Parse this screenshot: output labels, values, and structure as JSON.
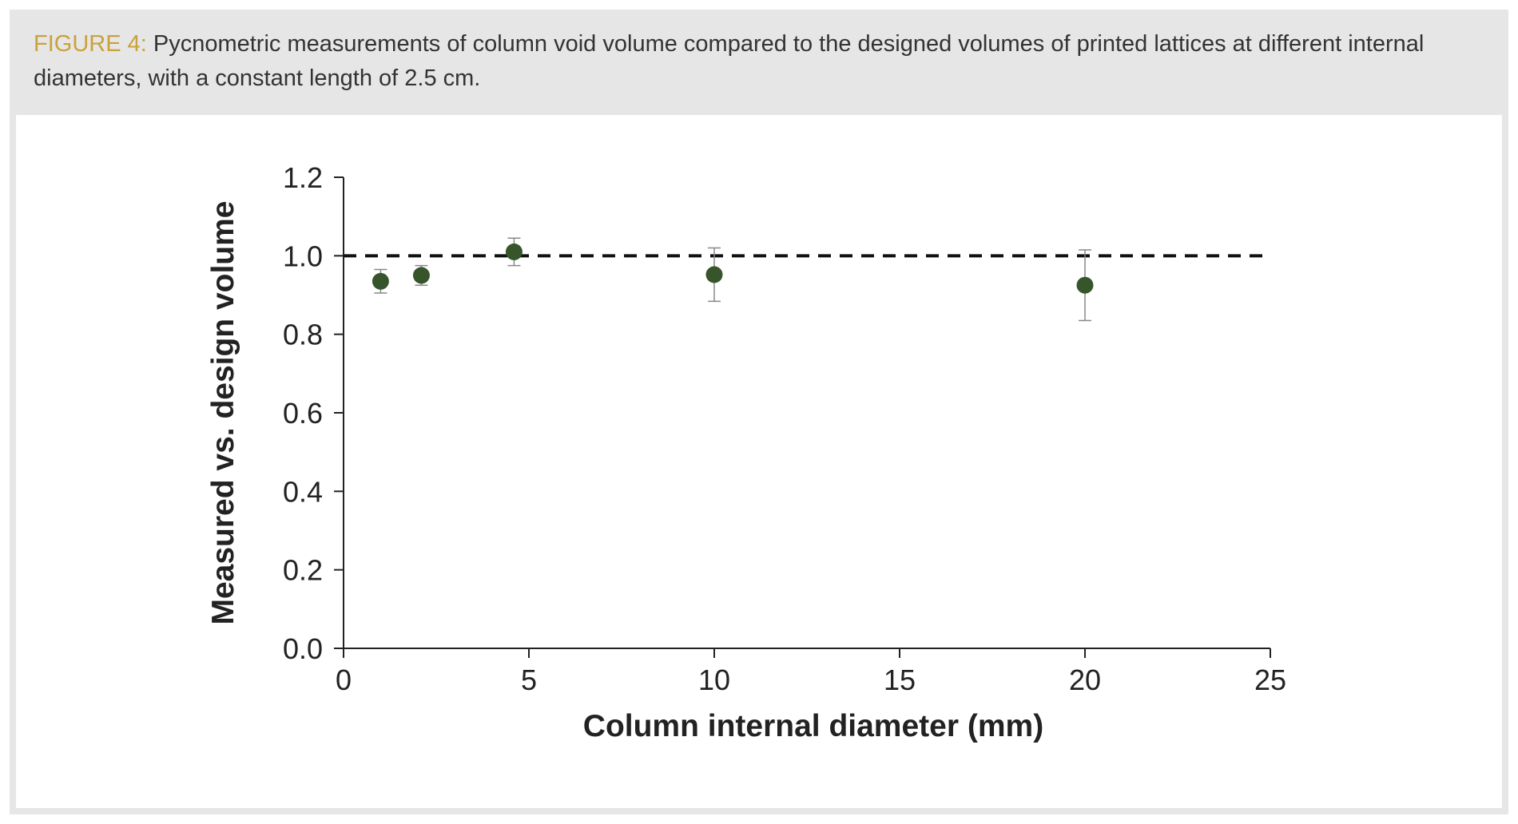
{
  "caption": {
    "label": "FIGURE 4:",
    "text": " Pycnometric measurements of column void volume compared to the designed volumes of printed lattices at different internal diameters, with a constant length of 2.5 cm."
  },
  "chart_data": {
    "type": "scatter",
    "xlabel": "Column internal diameter (mm)",
    "ylabel": "Measured vs. design volume",
    "xlim": [
      0,
      25
    ],
    "ylim": [
      0,
      1.2
    ],
    "xticks": [
      "0",
      "5",
      "10",
      "15",
      "20",
      "25"
    ],
    "yticks": [
      "0.0",
      "0.2",
      "0.4",
      "0.6",
      "0.8",
      "1.0",
      "1.2"
    ],
    "grid": false,
    "reference_line": {
      "y": 1.0,
      "style": "dashed"
    },
    "points": [
      {
        "x": 1.0,
        "y": 0.935,
        "err": 0.03
      },
      {
        "x": 2.1,
        "y": 0.95,
        "err": 0.025
      },
      {
        "x": 4.6,
        "y": 1.01,
        "err": 0.035
      },
      {
        "x": 10.0,
        "y": 0.952,
        "err": 0.068
      },
      {
        "x": 20.0,
        "y": 0.925,
        "err": 0.09
      }
    ],
    "marker_color": "#36552a"
  }
}
